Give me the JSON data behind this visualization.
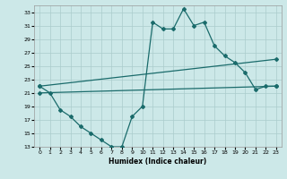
{
  "xlabel": "Humidex (Indice chaleur)",
  "bg_color": "#cce8e8",
  "grid_color": "#aacccc",
  "line_color": "#1a6b6b",
  "xlim": [
    -0.5,
    23.5
  ],
  "ylim": [
    13,
    34
  ],
  "yticks": [
    13,
    15,
    17,
    19,
    21,
    23,
    25,
    27,
    29,
    31,
    33
  ],
  "xticks": [
    0,
    1,
    2,
    3,
    4,
    5,
    6,
    7,
    8,
    9,
    10,
    11,
    12,
    13,
    14,
    15,
    16,
    17,
    18,
    19,
    20,
    21,
    22,
    23
  ],
  "line1_x": [
    0,
    1,
    2,
    3,
    4,
    5,
    6,
    7,
    8,
    9,
    10,
    11,
    12,
    13,
    14,
    15,
    16,
    17,
    18,
    19,
    20,
    21,
    22,
    23
  ],
  "line1_y": [
    22.0,
    21.0,
    18.5,
    17.5,
    16.0,
    15.0,
    14.0,
    13.0,
    13.0,
    17.5,
    19.0,
    31.5,
    30.5,
    30.5,
    33.5,
    31.0,
    31.5,
    28.0,
    26.5,
    25.5,
    24.0,
    21.5,
    22.0,
    22.0
  ],
  "line2_x": [
    0,
    23
  ],
  "line2_y": [
    22.0,
    26.0
  ],
  "line3_x": [
    0,
    23
  ],
  "line3_y": [
    21.0,
    22.0
  ]
}
